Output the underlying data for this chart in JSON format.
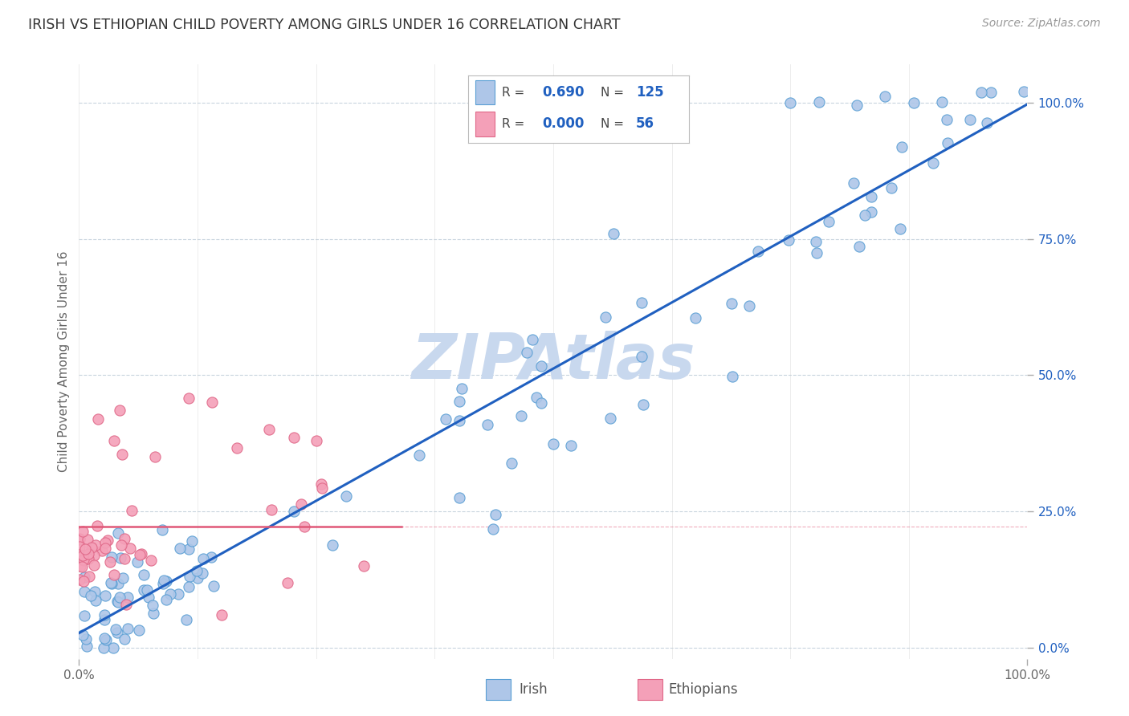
{
  "title": "IRISH VS ETHIOPIAN CHILD POVERTY AMONG GIRLS UNDER 16 CORRELATION CHART",
  "source": "Source: ZipAtlas.com",
  "ylabel": "Child Poverty Among Girls Under 16",
  "irish_color": "#aec6e8",
  "irish_edge_color": "#5a9fd4",
  "ethiopian_color": "#f4a0b8",
  "ethiopian_edge_color": "#e06888",
  "irish_line_color": "#2060c0",
  "ethiopian_line_color": "#e05878",
  "watermark_color": "#c8d8ee",
  "R_irish": 0.69,
  "N_irish": 125,
  "R_ethiopian": 0.0,
  "N_ethiopian": 56,
  "background_color": "#ffffff",
  "grid_color": "#c8d4de",
  "legend_label_irish": "Irish",
  "legend_label_ethiopian": "Ethiopians",
  "legend_text_color": "#2060c0",
  "legend_label_color": "#444444"
}
